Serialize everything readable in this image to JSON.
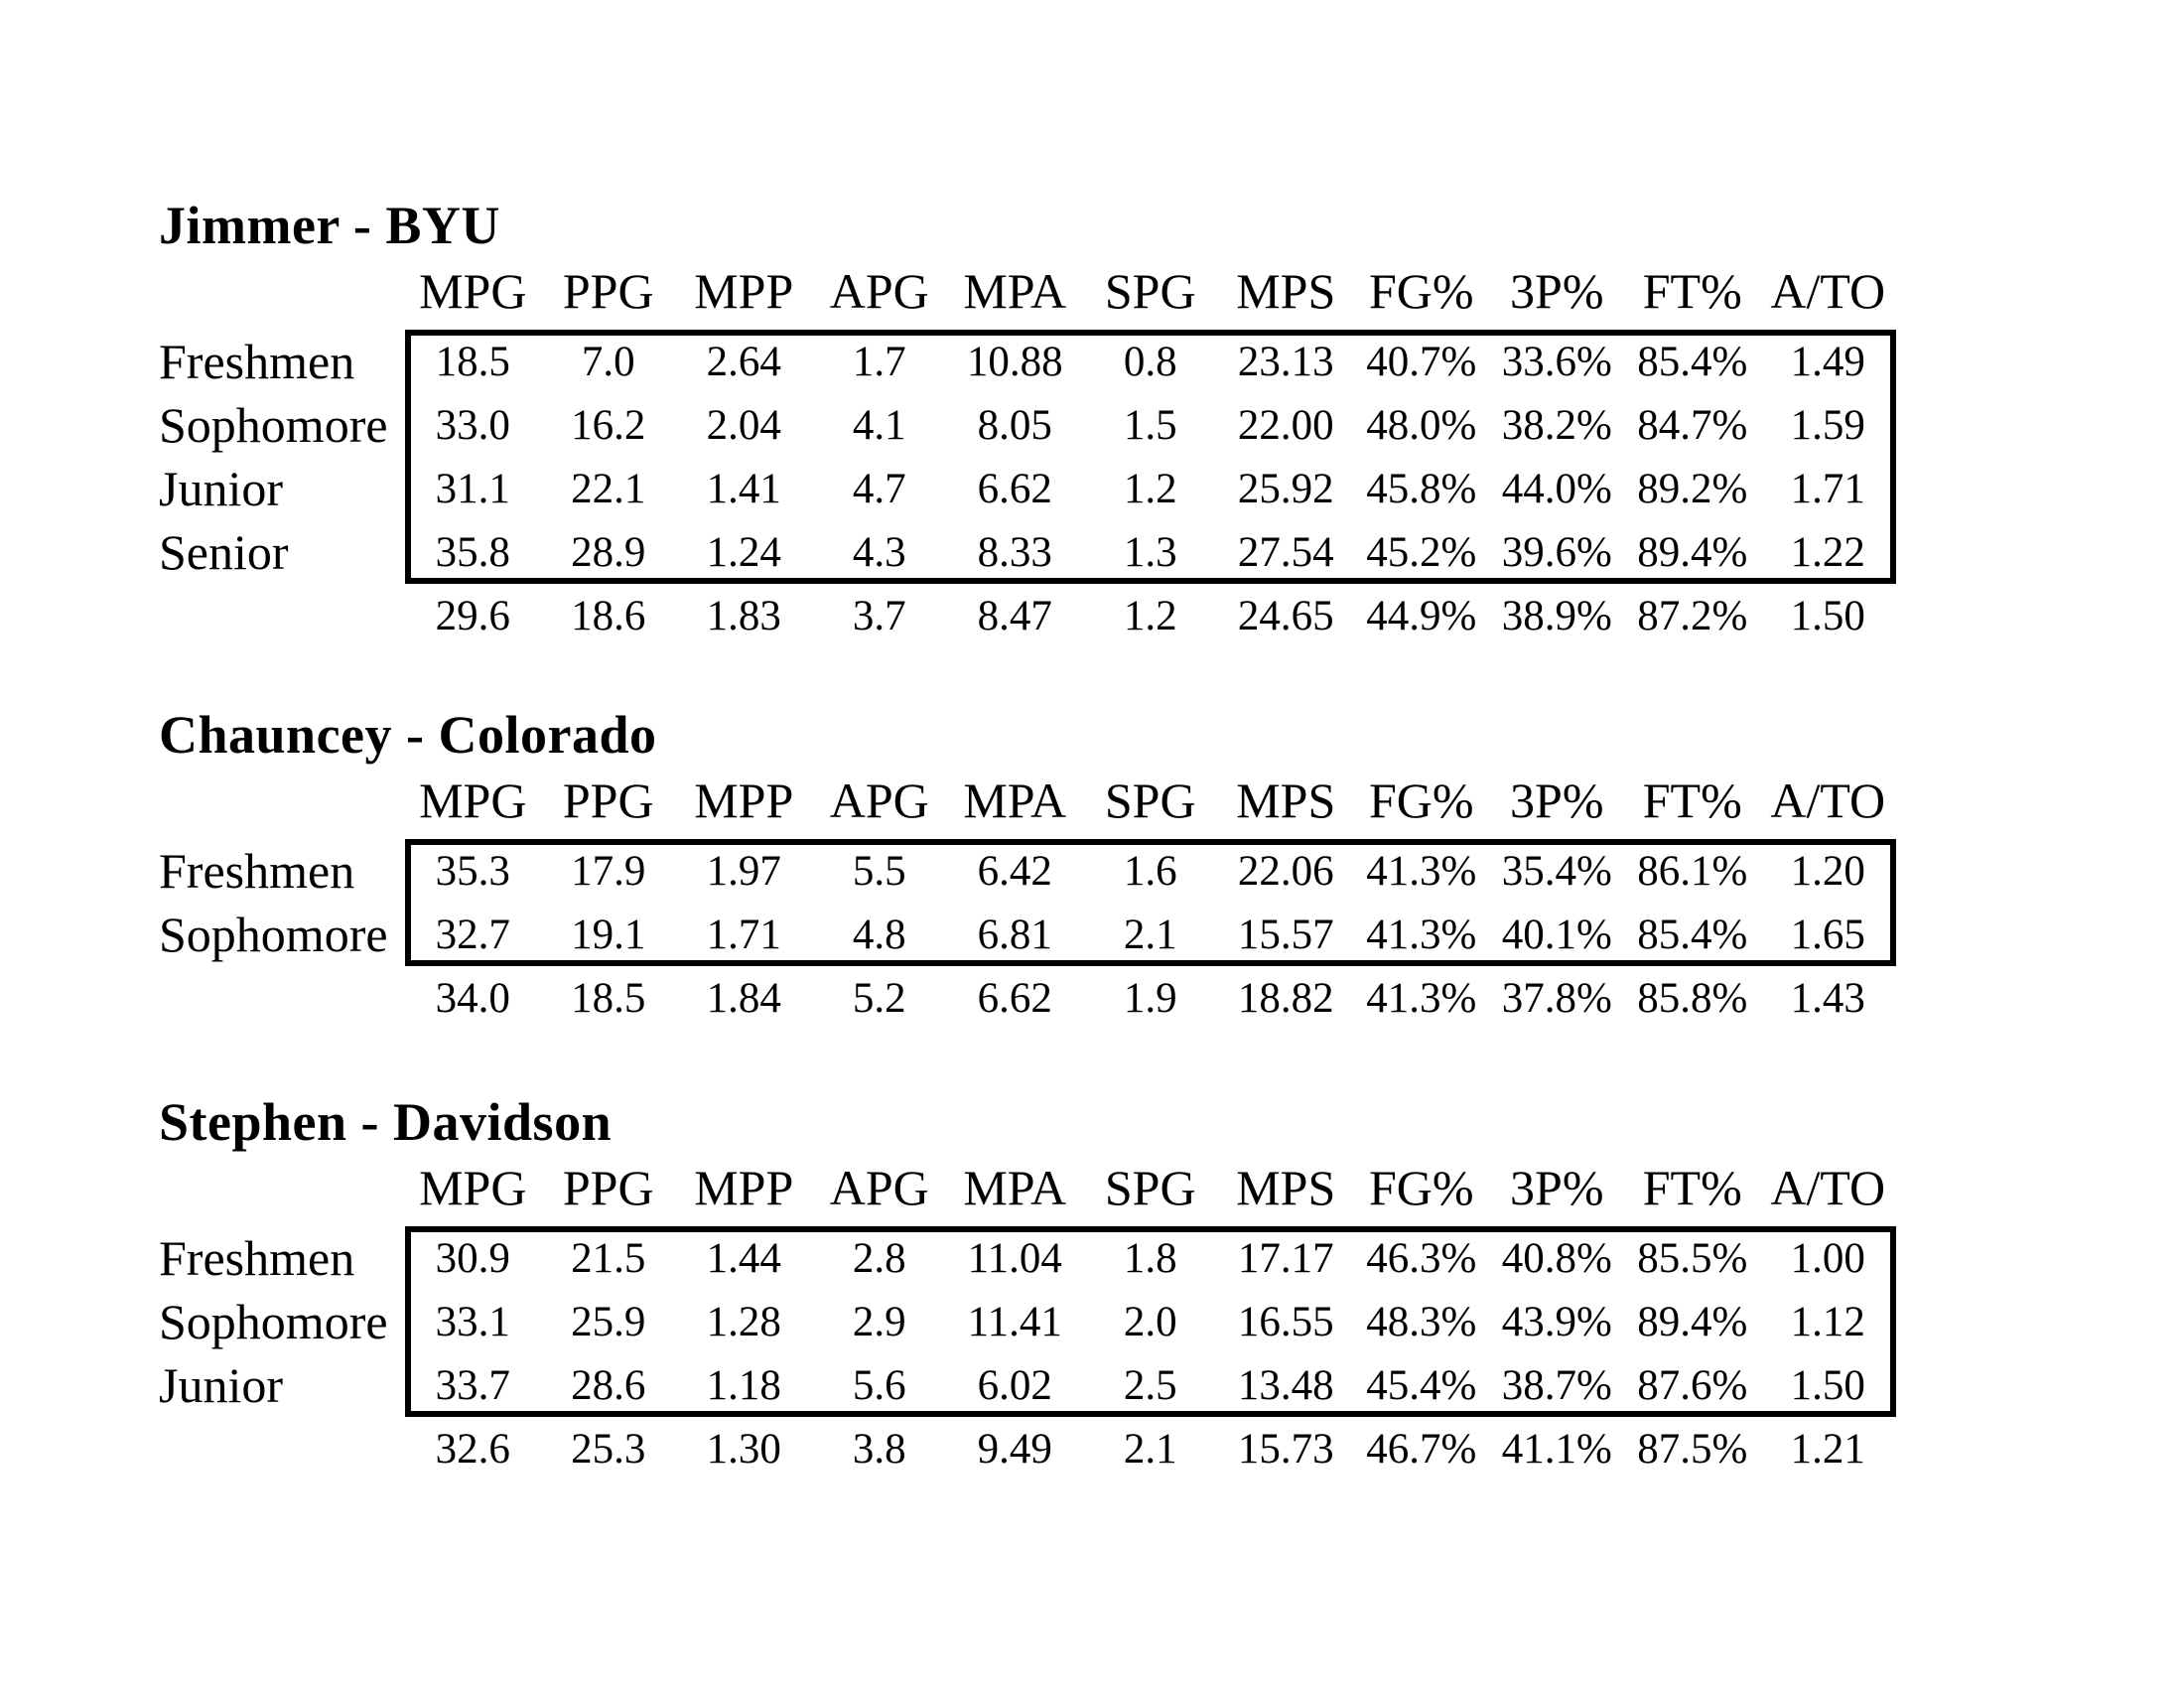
{
  "page": {
    "background_color": "#ffffff",
    "text_color": "#000000",
    "table_border_color": "#000000"
  },
  "columns": [
    "MPG",
    "PPG",
    "MPP",
    "APG",
    "MPA",
    "SPG",
    "MPS",
    "FG%",
    "3P%",
    "FT%",
    "A/TO"
  ],
  "sections": [
    {
      "title": "Jimmer - BYU",
      "rows": [
        {
          "label": "Freshmen",
          "values": [
            "18.5",
            "7.0",
            "2.64",
            "1.7",
            "10.88",
            "0.8",
            "23.13",
            "40.7%",
            "33.6%",
            "85.4%",
            "1.49"
          ]
        },
        {
          "label": "Sophomore",
          "values": [
            "33.0",
            "16.2",
            "2.04",
            "4.1",
            "8.05",
            "1.5",
            "22.00",
            "48.0%",
            "38.2%",
            "84.7%",
            "1.59"
          ]
        },
        {
          "label": "Junior",
          "values": [
            "31.1",
            "22.1",
            "1.41",
            "4.7",
            "6.62",
            "1.2",
            "25.92",
            "45.8%",
            "44.0%",
            "89.2%",
            "1.71"
          ]
        },
        {
          "label": "Senior",
          "values": [
            "35.8",
            "28.9",
            "1.24",
            "4.3",
            "8.33",
            "1.3",
            "27.54",
            "45.2%",
            "39.6%",
            "89.4%",
            "1.22"
          ]
        }
      ],
      "totals": [
        "29.6",
        "18.6",
        "1.83",
        "3.7",
        "8.47",
        "1.2",
        "24.65",
        "44.9%",
        "38.9%",
        "87.2%",
        "1.50"
      ]
    },
    {
      "title": "Chauncey - Colorado",
      "rows": [
        {
          "label": "Freshmen",
          "values": [
            "35.3",
            "17.9",
            "1.97",
            "5.5",
            "6.42",
            "1.6",
            "22.06",
            "41.3%",
            "35.4%",
            "86.1%",
            "1.20"
          ]
        },
        {
          "label": "Sophomore",
          "values": [
            "32.7",
            "19.1",
            "1.71",
            "4.8",
            "6.81",
            "2.1",
            "15.57",
            "41.3%",
            "40.1%",
            "85.4%",
            "1.65"
          ]
        }
      ],
      "totals": [
        "34.0",
        "18.5",
        "1.84",
        "5.2",
        "6.62",
        "1.9",
        "18.82",
        "41.3%",
        "37.8%",
        "85.8%",
        "1.43"
      ]
    },
    {
      "title": "Stephen - Davidson",
      "rows": [
        {
          "label": "Freshmen",
          "values": [
            "30.9",
            "21.5",
            "1.44",
            "2.8",
            "11.04",
            "1.8",
            "17.17",
            "46.3%",
            "40.8%",
            "85.5%",
            "1.00"
          ]
        },
        {
          "label": "Sophomore",
          "values": [
            "33.1",
            "25.9",
            "1.28",
            "2.9",
            "11.41",
            "2.0",
            "16.55",
            "48.3%",
            "43.9%",
            "89.4%",
            "1.12"
          ]
        },
        {
          "label": "Junior",
          "values": [
            "33.7",
            "28.6",
            "1.18",
            "5.6",
            "6.02",
            "2.5",
            "13.48",
            "45.4%",
            "38.7%",
            "87.6%",
            "1.50"
          ]
        }
      ],
      "totals": [
        "32.6",
        "25.3",
        "1.30",
        "3.8",
        "9.49",
        "2.1",
        "15.73",
        "46.7%",
        "41.1%",
        "87.5%",
        "1.21"
      ]
    }
  ]
}
